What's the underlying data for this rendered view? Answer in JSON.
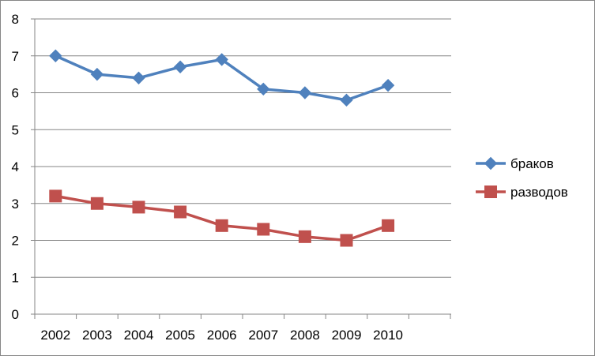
{
  "chart_data": {
    "type": "line",
    "title": "",
    "xlabel": "",
    "ylabel": "",
    "x": [
      "2002",
      "2003",
      "2004",
      "2005",
      "2006",
      "2007",
      "2008",
      "2009",
      "2010"
    ],
    "ylim": [
      0,
      8
    ],
    "yticks": [
      "0",
      "1",
      "2",
      "3",
      "4",
      "5",
      "6",
      "7",
      "8"
    ],
    "grid": "horizontal",
    "legend_position": "right",
    "series": [
      {
        "name": "браков",
        "color": "#4F81BD",
        "marker": "diamond",
        "values": [
          7.0,
          6.5,
          6.4,
          6.7,
          6.9,
          6.1,
          6.0,
          5.8,
          6.2
        ]
      },
      {
        "name": "разводов",
        "color": "#C0504D",
        "marker": "square",
        "values": [
          3.2,
          3.0,
          2.9,
          2.77,
          2.4,
          2.3,
          2.1,
          2.0,
          2.4
        ]
      }
    ]
  }
}
